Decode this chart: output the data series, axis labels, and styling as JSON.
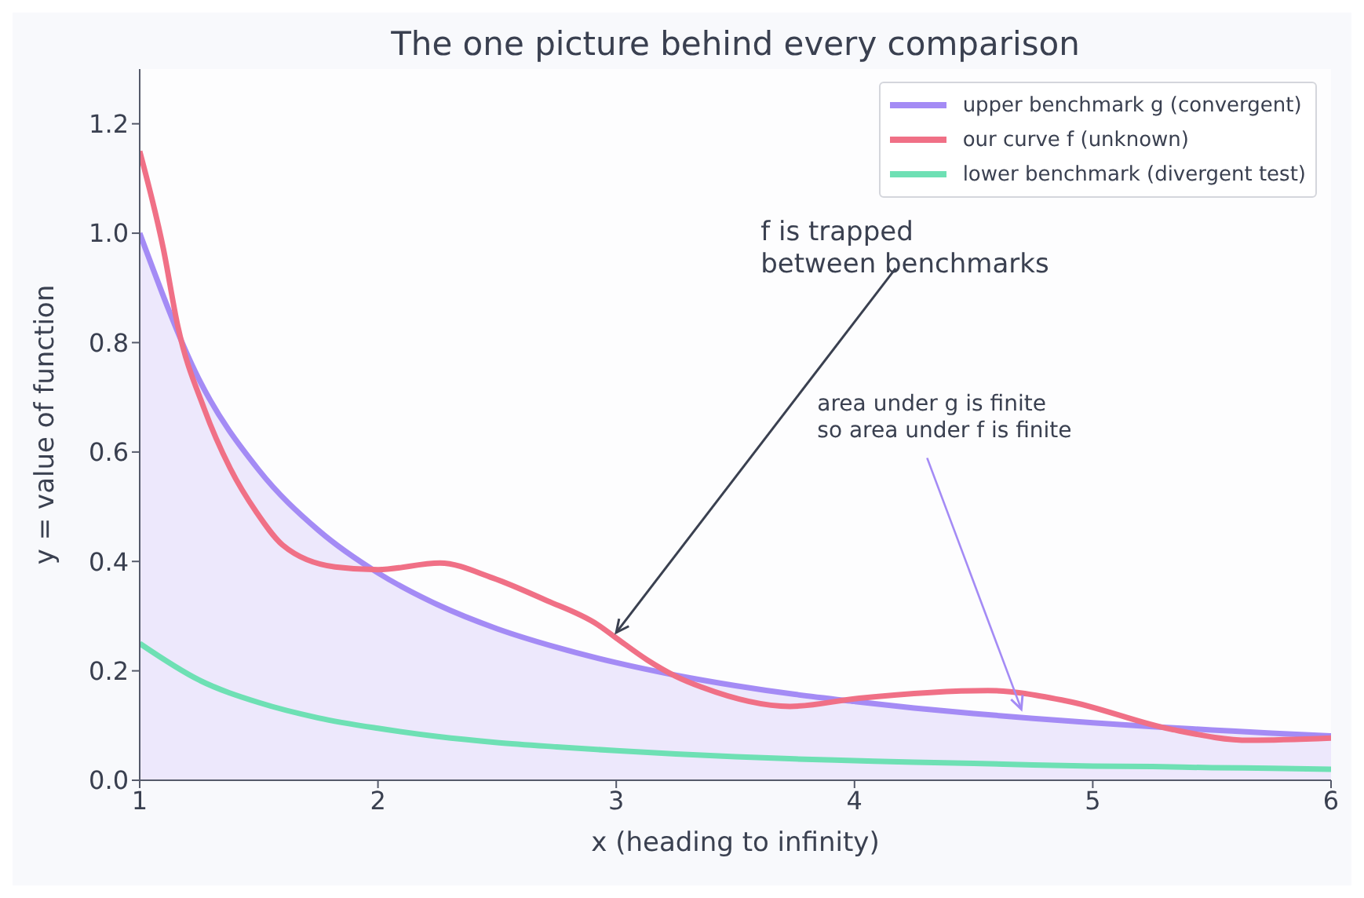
{
  "chart_data": {
    "type": "line",
    "title": "The one picture behind every comparison",
    "xlabel": "x  (heading to infinity)",
    "ylabel": "y = value of function",
    "xlim": [
      1,
      6
    ],
    "xticks": [
      1,
      2,
      3,
      4,
      5,
      6
    ],
    "ylim": [
      0,
      1.3
    ],
    "yticks": [
      {
        "value": 0,
        "label": "0.0"
      },
      {
        "value": 0.2,
        "label": "0.2"
      },
      {
        "value": 0.4,
        "label": "0.4"
      },
      {
        "value": 0.6,
        "label": "0.6"
      },
      {
        "value": 0.8,
        "label": "0.8"
      },
      {
        "value": 1,
        "label": "1.0"
      },
      {
        "value": 1.2,
        "label": "1.2"
      }
    ],
    "grid": false,
    "legend": "top right",
    "marker": "none",
    "line_style": "solid",
    "series": [
      {
        "name": "upper benchmark g (convergent)",
        "type": "area",
        "color": "#a48bf5",
        "x": [
          1,
          1.25,
          1.5,
          1.75,
          2,
          2.25,
          2.5,
          2.75,
          3,
          3.25,
          3.5,
          3.75,
          4,
          4.25,
          4.5,
          4.75,
          5,
          5.25,
          5.5,
          5.75,
          6
        ],
        "values": [
          1,
          0.732,
          0.567,
          0.457,
          0.379,
          0.321,
          0.277,
          0.243,
          0.215,
          0.192,
          0.173,
          0.157,
          0.144,
          0.132,
          0.122,
          0.113,
          0.105,
          0.098,
          0.092,
          0.086,
          0.081
        ]
      },
      {
        "name": "our curve f (unknown)",
        "color": "#f07086",
        "x": [
          1,
          1.1,
          1.16,
          1.27,
          1.38,
          1.49,
          1.6,
          1.82,
          2,
          2.26,
          2.48,
          2.7,
          2.92,
          3,
          3.13,
          3.25,
          3.36,
          3.73,
          4.02,
          4.56,
          4.89,
          5.33,
          5.66,
          6
        ],
        "values": [
          1.15,
          0.97,
          0.83,
          0.68,
          0.57,
          0.49,
          0.43,
          0.39,
          0.385,
          0.397,
          0.37,
          0.33,
          0.285,
          0.26,
          0.22,
          0.19,
          0.17,
          0.135,
          0.15,
          0.164,
          0.145,
          0.093,
          0.073,
          0.077
        ]
      },
      {
        "name": "lower benchmark (divergent test)",
        "color": "#6ee0b4",
        "x": [
          1,
          1.25,
          1.5,
          1.75,
          2,
          2.25,
          2.5,
          2.75,
          3,
          3.25,
          3.5,
          3.75,
          4,
          4.25,
          4.5,
          4.75,
          5,
          5.25,
          5.5,
          5.75,
          6
        ],
        "values": [
          0.25,
          0.183,
          0.142,
          0.114,
          0.095,
          0.08,
          0.069,
          0.061,
          0.054,
          0.048,
          0.043,
          0.039,
          0.036,
          0.033,
          0.031,
          0.028,
          0.026,
          0.025,
          0.023,
          0.022,
          0.02
        ]
      }
    ],
    "annotations": [
      {
        "text": "f is trapped\nbetween benchmarks",
        "x": 3,
        "y": 0.27
      },
      {
        "text": "area under g is finite\nso area under f is finite",
        "x": 4.7,
        "y": 0.13
      }
    ]
  }
}
